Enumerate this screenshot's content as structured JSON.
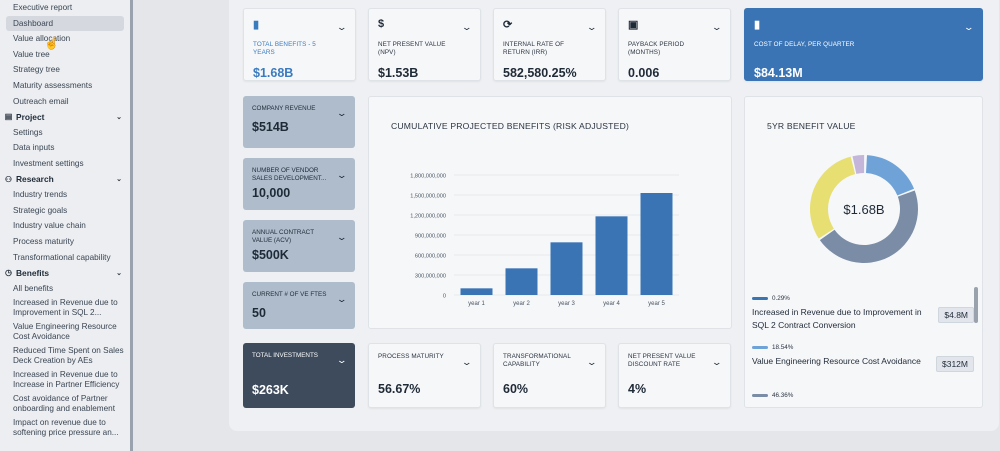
{
  "sidebar": {
    "items": [
      {
        "type": "item",
        "label": "Executive report"
      },
      {
        "type": "item",
        "label": "Dashboard",
        "active": true
      },
      {
        "type": "item",
        "label": "Value allocation"
      },
      {
        "type": "item",
        "label": "Value tree"
      },
      {
        "type": "item",
        "label": "Strategy tree"
      },
      {
        "type": "item",
        "label": "Maturity assessments"
      },
      {
        "type": "item",
        "label": "Outreach email"
      },
      {
        "type": "section",
        "label": "Project",
        "icon": "clipboard-icon"
      },
      {
        "type": "item",
        "label": "Settings"
      },
      {
        "type": "item",
        "label": "Data inputs"
      },
      {
        "type": "item",
        "label": "Investment settings"
      },
      {
        "type": "section",
        "label": "Research",
        "icon": "people-icon"
      },
      {
        "type": "item",
        "label": "Industry trends"
      },
      {
        "type": "item",
        "label": "Strategic goals"
      },
      {
        "type": "item",
        "label": "Industry value chain"
      },
      {
        "type": "item",
        "label": "Process maturity"
      },
      {
        "type": "item",
        "label": "Transformational capability"
      },
      {
        "type": "section",
        "label": "Benefits",
        "icon": "dollar-circle-icon"
      },
      {
        "type": "item",
        "label": "All benefits"
      },
      {
        "type": "item",
        "label": "Increased in Revenue due to Improvement in SQL 2...",
        "multi": true
      },
      {
        "type": "item",
        "label": "Value Engineering Resource Cost Avoidance",
        "multi": true
      },
      {
        "type": "item",
        "label": "Reduced Time Spent on Sales Deck Creation by AEs",
        "multi": true
      },
      {
        "type": "item",
        "label": "Increased in Revenue due to Increase in Partner Efficiency",
        "multi": true
      },
      {
        "type": "item",
        "label": "Cost avoidance of Partner onboarding and enablement",
        "multi": true
      },
      {
        "type": "item",
        "label": "Impact on revenue due to softening price pressure an...",
        "multi": true
      }
    ]
  },
  "top_cards": [
    {
      "label": "Total benefits - 5 years",
      "value": "$1.68B",
      "icon": "bar-chart-icon",
      "style": "blue-text"
    },
    {
      "label": "Net present value (NPV)",
      "value": "$1.53B",
      "icon": "dollar-icon",
      "style": "plain"
    },
    {
      "label": "Internal rate of return (IRR)",
      "value": "582,580.25%",
      "icon": "refresh-icon",
      "style": "plain"
    },
    {
      "label": "Payback period (months)",
      "value": "0.006",
      "icon": "calendar-icon",
      "style": "plain"
    },
    {
      "label": "Cost of delay, per quarter",
      "value": "$84.13M",
      "icon": "bar-chart-icon",
      "style": "dark-blue"
    }
  ],
  "side_cards": [
    {
      "label": "Company revenue",
      "value": "$514B"
    },
    {
      "label": "Number of vendor sales development...",
      "value": "10,000"
    },
    {
      "label": "Annual contract value (ACV)",
      "value": "$500K"
    },
    {
      "label": "Current # of VE FTEs",
      "value": "50"
    },
    {
      "label": "Total investments",
      "value": "$263K",
      "dark": true
    }
  ],
  "bottom_cards": [
    {
      "label": "Process maturity",
      "value": "56.67%"
    },
    {
      "label": "Transformational capability",
      "value": "60%"
    },
    {
      "label": "Net present value discount rate",
      "value": "4%"
    }
  ],
  "chart_data": [
    {
      "type": "bar",
      "title": "Cumulative projected benefits (risk adjusted)",
      "categories": [
        "year 1",
        "year 2",
        "year 3",
        "year 4",
        "year 5"
      ],
      "values": [
        100000000,
        400000000,
        790000000,
        1180000000,
        1530000000
      ],
      "yticks": [
        "0",
        "300,000,000",
        "600,000,000",
        "900,000,000",
        "1,200,000,000",
        "1,500,000,000",
        "1,800,000,000"
      ],
      "ylim": [
        0,
        1800000000
      ],
      "color": "#3a74b4"
    },
    {
      "type": "pie",
      "title": "5yr benefit value",
      "center_label": "$1.68B",
      "series": [
        {
          "value": 0.29,
          "color": "#3a74b4"
        },
        {
          "value": 18.54,
          "color": "#6fa3d8"
        },
        {
          "value": 46.36,
          "color": "#7b8ca6"
        },
        {
          "value": 30.8,
          "color": "#e7df72"
        },
        {
          "value": 4.01,
          "color": "#c4b6d9"
        }
      ],
      "legend": [
        {
          "pct": "0.29%",
          "name": "Increased in Revenue due to Improvement in SQL 2 Contract Conversion",
          "amount": "$4.8M",
          "color": "#3a74b4"
        },
        {
          "pct": "18.54%",
          "name": "Value Engineering Resource Cost Avoidance",
          "amount": "$312M",
          "color": "#6fa3d8"
        },
        {
          "pct": "46.36%",
          "name": "",
          "amount": "",
          "color": "#7b8ca6"
        }
      ]
    }
  ]
}
